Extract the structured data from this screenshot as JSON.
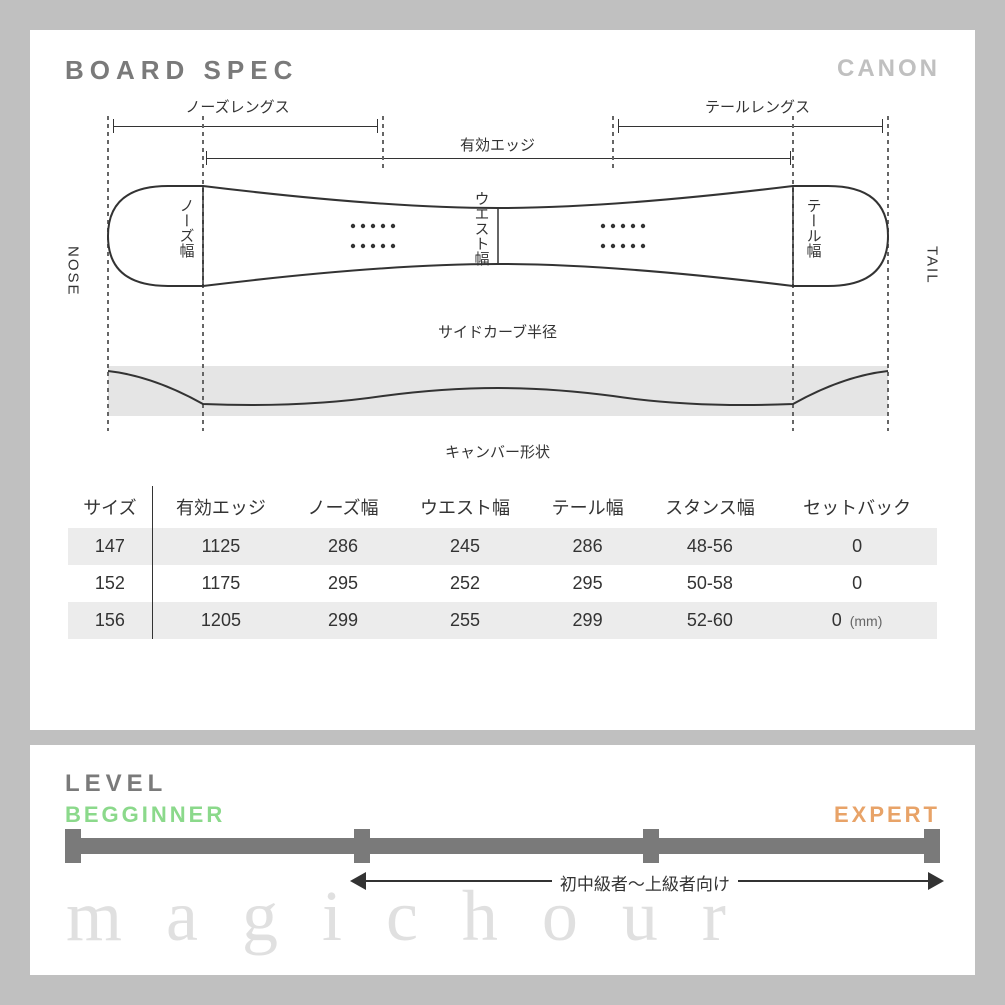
{
  "header": {
    "title": "BOARD SPEC",
    "brand": "CANON"
  },
  "diagram": {
    "nose_label_en": "NOSE",
    "tail_label_en": "TAIL",
    "nose_length": "ノーズレングス",
    "tail_length": "テールレングス",
    "effective_edge": "有効エッジ",
    "nose_width": "ノーズ幅",
    "waist_width": "ウエスト幅",
    "tail_width": "テール幅",
    "sidecut_radius": "サイドカーブ半径",
    "camber_shape": "キャンバー形状",
    "dash_lines_x": [
      35,
      130,
      310,
      540,
      720,
      815
    ],
    "board_outline_color": "#333333",
    "dash_color": "#666666",
    "gray_band_color": "#e5e5e5"
  },
  "table": {
    "columns": [
      "サイズ",
      "有効エッジ",
      "ノーズ幅",
      "ウエスト幅",
      "テール幅",
      "スタンス幅",
      "セットバック"
    ],
    "rows": [
      [
        "147",
        "1125",
        "286",
        "245",
        "286",
        "48-56",
        "0"
      ],
      [
        "152",
        "1175",
        "295",
        "252",
        "295",
        "50-58",
        "0"
      ],
      [
        "156",
        "1205",
        "299",
        "255",
        "299",
        "52-60",
        "0"
      ]
    ],
    "unit": "(mm)",
    "header_fontsize": 18,
    "row_bg_alt": "#ececec"
  },
  "level": {
    "title": "LEVEL",
    "beginner": "BEGGINNER",
    "expert": "EXPERT",
    "beginner_color": "#8bd98b",
    "expert_color": "#e8a368",
    "bar_color": "#7a7a7a",
    "ticks_pct": [
      0,
      33,
      66,
      98.2
    ],
    "range_start_pct": 33,
    "range_end_pct": 100,
    "range_text": "初中級者～上級者向け",
    "watermark": "magichour"
  },
  "colors": {
    "page_bg": "#c0c0c0",
    "panel_bg": "#ffffff",
    "text": "#333333",
    "muted": "#7a7a7a"
  }
}
